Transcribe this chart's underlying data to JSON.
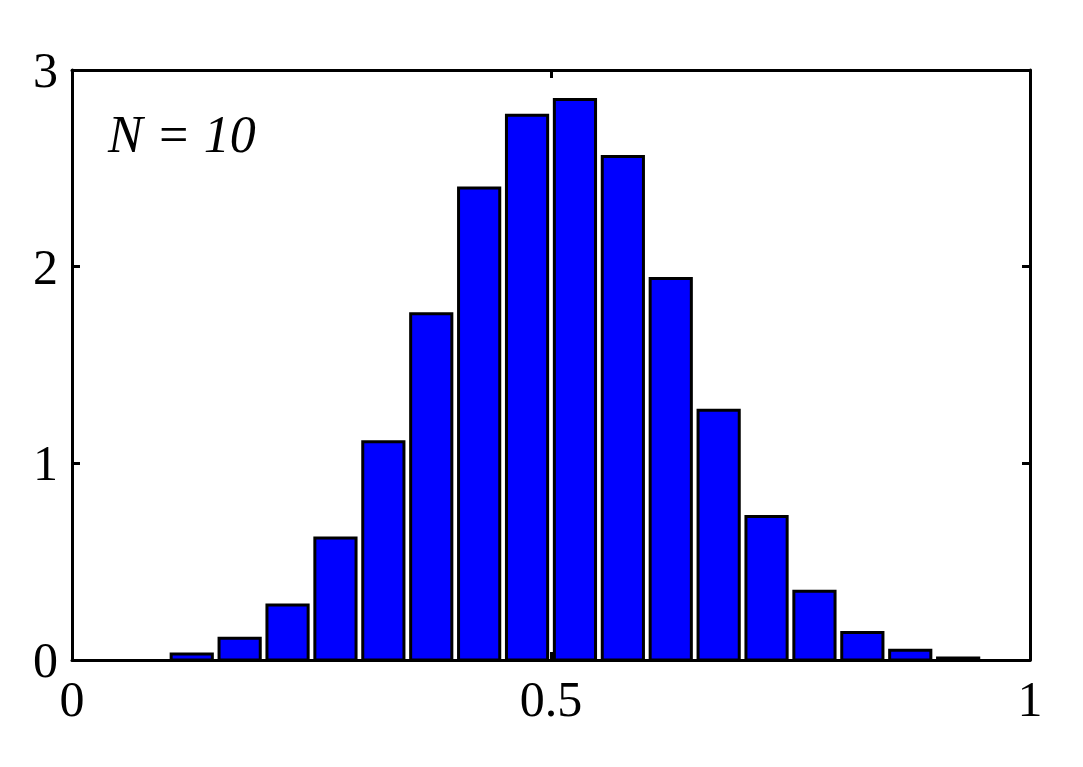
{
  "chart_data": {
    "type": "histogram",
    "bins": [
      0.1,
      0.15,
      0.2,
      0.25,
      0.3,
      0.35,
      0.4,
      0.45,
      0.5,
      0.55,
      0.6,
      0.65,
      0.7,
      0.75,
      0.8,
      0.85,
      0.9,
      0.95
    ],
    "values": [
      0.03,
      0.11,
      0.28,
      0.62,
      1.11,
      1.76,
      2.4,
      2.77,
      2.85,
      2.56,
      1.94,
      1.27,
      0.73,
      0.35,
      0.14,
      0.05,
      0.01
    ],
    "color": "#0000ff",
    "xlim": [
      0,
      1
    ],
    "xticks": [
      0,
      0.5,
      1
    ],
    "ylim": [
      0,
      3
    ],
    "yticks": [
      0,
      1,
      2,
      3
    ],
    "grid": false,
    "annotations": [
      "N = 10"
    ]
  }
}
